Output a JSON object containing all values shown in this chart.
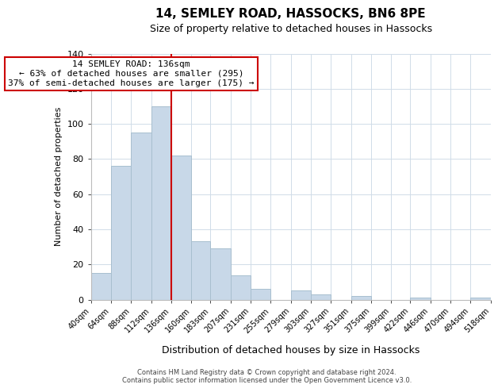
{
  "title": "14, SEMLEY ROAD, HASSOCKS, BN6 8PE",
  "subtitle": "Size of property relative to detached houses in Hassocks",
  "xlabel": "Distribution of detached houses by size in Hassocks",
  "ylabel": "Number of detached properties",
  "bar_edges": [
    40,
    64,
    88,
    112,
    136,
    160,
    183,
    207,
    231,
    255,
    279,
    303,
    327,
    351,
    375,
    399,
    422,
    446,
    470,
    494,
    518
  ],
  "bar_heights": [
    15,
    76,
    95,
    110,
    82,
    33,
    29,
    14,
    6,
    0,
    5,
    3,
    0,
    2,
    0,
    0,
    1,
    0,
    0,
    1
  ],
  "tick_labels": [
    "40sqm",
    "64sqm",
    "88sqm",
    "112sqm",
    "136sqm",
    "160sqm",
    "183sqm",
    "207sqm",
    "231sqm",
    "255sqm",
    "279sqm",
    "303sqm",
    "327sqm",
    "351sqm",
    "375sqm",
    "399sqm",
    "422sqm",
    "446sqm",
    "470sqm",
    "494sqm",
    "518sqm"
  ],
  "bar_color": "#c8d8e8",
  "bar_edge_color": "#a8bfcf",
  "vline_x": 136,
  "vline_color": "#cc0000",
  "annotation_title": "14 SEMLEY ROAD: 136sqm",
  "annotation_line1": "← 63% of detached houses are smaller (295)",
  "annotation_line2": "37% of semi-detached houses are larger (175) →",
  "annotation_box_color": "#ffffff",
  "annotation_box_edge": "#cc0000",
  "ylim": [
    0,
    140
  ],
  "yticks": [
    0,
    20,
    40,
    60,
    80,
    100,
    120,
    140
  ],
  "footer_line1": "Contains HM Land Registry data © Crown copyright and database right 2024.",
  "footer_line2": "Contains public sector information licensed under the Open Government Licence v3.0.",
  "background_color": "#ffffff",
  "grid_color": "#d0dce8"
}
